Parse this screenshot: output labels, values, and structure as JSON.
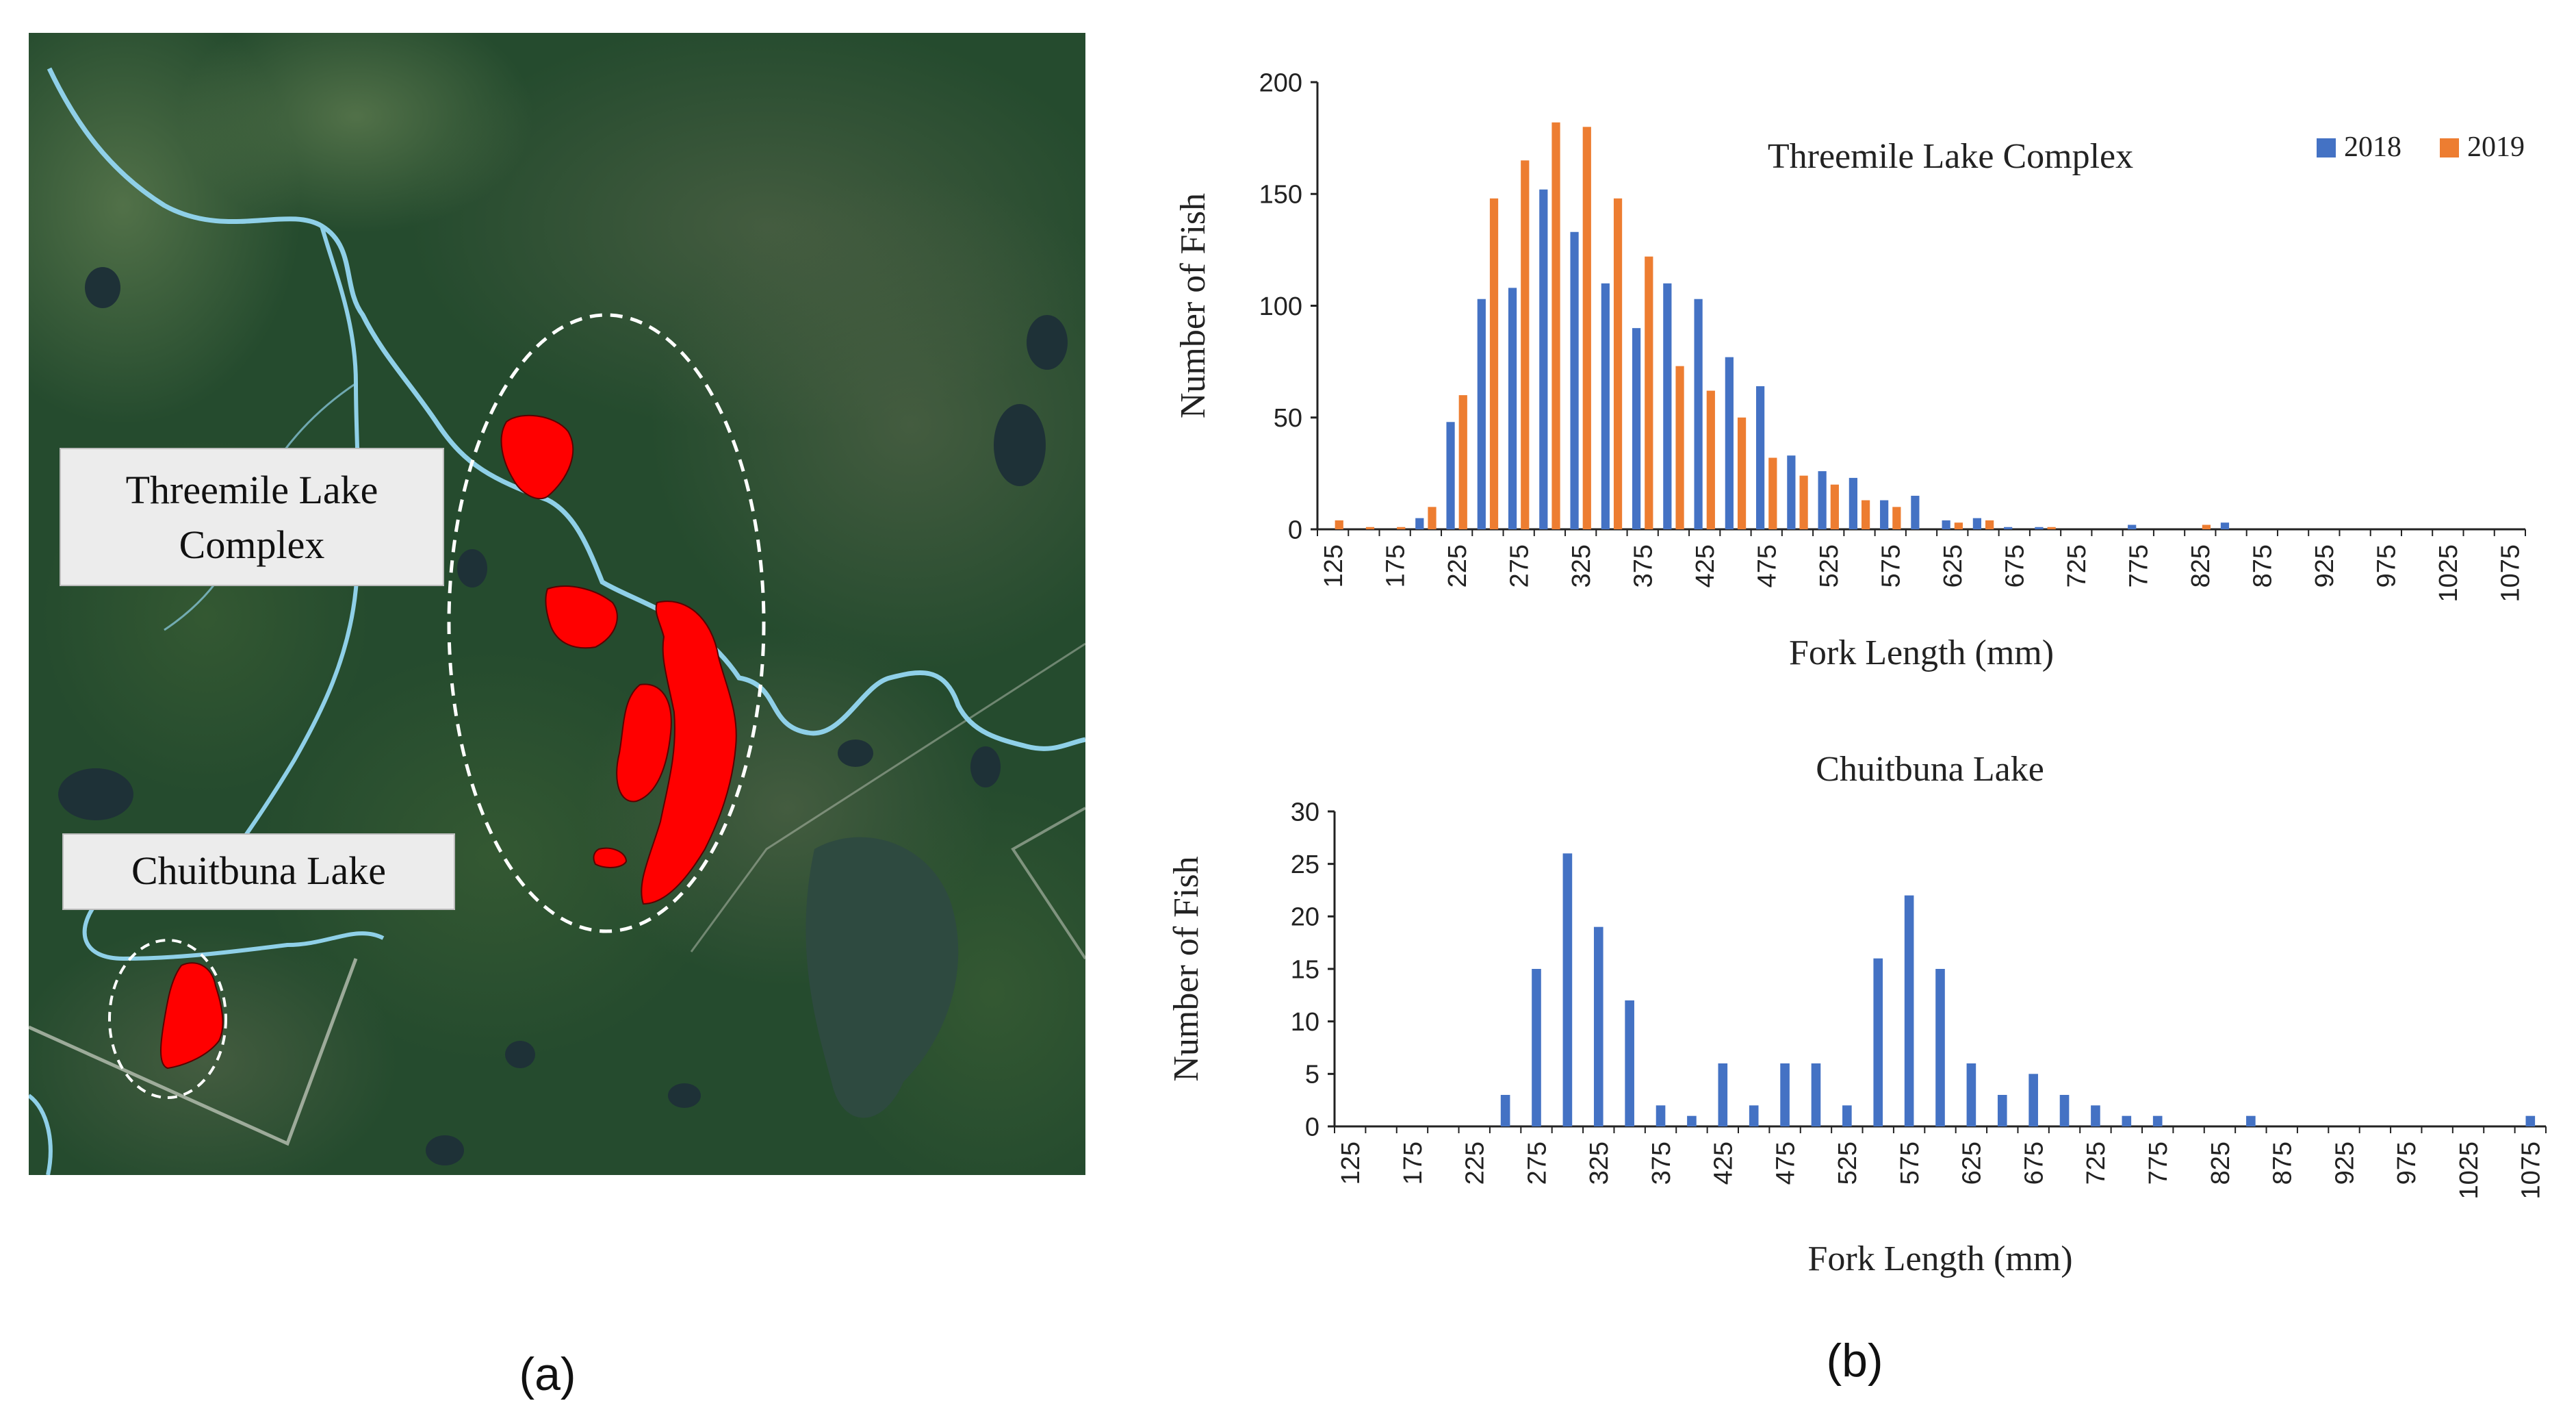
{
  "panel_a": {
    "caption": "(a)",
    "map_labels": [
      {
        "lines": [
          "Threemile Lake",
          "Complex"
        ]
      },
      {
        "lines": [
          "Chuitbuna Lake"
        ]
      }
    ],
    "colors": {
      "lake_highlight": "#ff0000",
      "river": "#8fd0e8",
      "forest": "#234a2c"
    }
  },
  "panel_b": {
    "caption": "(b)"
  },
  "chart_data": [
    {
      "type": "bar",
      "title": "Threemile Lake Complex",
      "xlabel": "Fork Length (mm)",
      "ylabel": "Number of Fish",
      "ylim": [
        0,
        200
      ],
      "yticks": [
        0,
        50,
        100,
        150,
        200
      ],
      "xtick_labels": [
        "125",
        "175",
        "225",
        "275",
        "325",
        "375",
        "425",
        "475",
        "525",
        "575",
        "625",
        "675",
        "725",
        "775",
        "825",
        "875",
        "925",
        "975",
        "1025",
        "1075"
      ],
      "legend_position": "top-right",
      "categories": [
        125,
        150,
        175,
        200,
        225,
        250,
        275,
        300,
        325,
        350,
        375,
        400,
        425,
        450,
        475,
        500,
        525,
        550,
        575,
        600,
        625,
        650,
        675,
        700,
        725,
        750,
        775,
        800,
        825,
        850,
        875,
        900,
        925,
        950,
        975,
        1000,
        1025,
        1050,
        1075
      ],
      "series": [
        {
          "name": "2018",
          "color": "#4472c4",
          "values": [
            0,
            0,
            0,
            5,
            48,
            103,
            108,
            152,
            133,
            110,
            90,
            110,
            103,
            77,
            64,
            33,
            26,
            23,
            13,
            15,
            4,
            5,
            1,
            1,
            0,
            0,
            2,
            0,
            0,
            3,
            0,
            0,
            0,
            0,
            0,
            0,
            0,
            0,
            0
          ]
        },
        {
          "name": "2019",
          "color": "#ed7d31",
          "values": [
            4,
            1,
            1,
            10,
            60,
            148,
            165,
            182,
            180,
            148,
            122,
            73,
            62,
            50,
            32,
            24,
            20,
            13,
            10,
            0,
            3,
            4,
            0,
            1,
            0,
            0,
            0,
            0,
            2,
            0,
            0,
            0,
            0,
            0,
            0,
            0,
            0,
            0,
            0
          ]
        }
      ]
    },
    {
      "type": "bar",
      "title": "Chuitbuna Lake",
      "xlabel": "Fork Length (mm)",
      "ylabel": "Number of Fish",
      "ylim": [
        0,
        30
      ],
      "yticks": [
        0,
        5,
        10,
        15,
        20,
        25,
        30
      ],
      "xtick_labels": [
        "125",
        "175",
        "225",
        "275",
        "325",
        "375",
        "425",
        "475",
        "525",
        "575",
        "625",
        "675",
        "725",
        "775",
        "825",
        "875",
        "925",
        "975",
        "1025",
        "1075"
      ],
      "categories": [
        125,
        150,
        175,
        200,
        225,
        250,
        275,
        300,
        325,
        350,
        375,
        400,
        425,
        450,
        475,
        500,
        525,
        550,
        575,
        600,
        625,
        650,
        675,
        700,
        725,
        750,
        775,
        800,
        825,
        850,
        875,
        900,
        925,
        950,
        975,
        1000,
        1025,
        1050,
        1075
      ],
      "series": [
        {
          "color": "#4472c4",
          "values": [
            0,
            0,
            0,
            0,
            0,
            3,
            15,
            26,
            19,
            12,
            2,
            1,
            6,
            2,
            6,
            6,
            2,
            16,
            22,
            15,
            6,
            3,
            5,
            3,
            2,
            1,
            1,
            0,
            0,
            1,
            0,
            0,
            0,
            0,
            0,
            0,
            0,
            0,
            1
          ]
        }
      ]
    }
  ]
}
